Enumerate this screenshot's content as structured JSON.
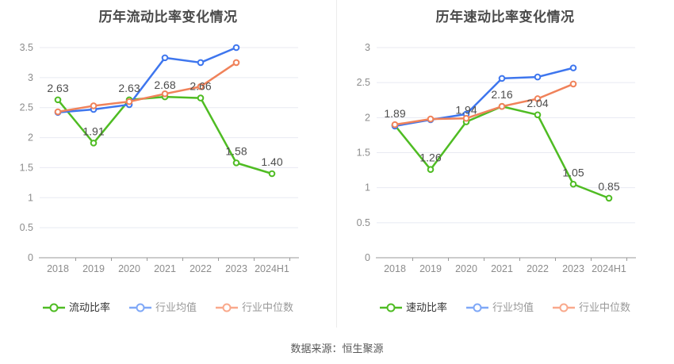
{
  "page": {
    "background": "#ffffff",
    "source_label": "数据来源：恒生聚源"
  },
  "colors": {
    "title_text": "#4a4a4a",
    "axis_line": "#999999",
    "axis_text": "#8c8c8c",
    "grid_line": "#e8eaf2",
    "value_label_text": "#4d4d4d",
    "source_text": "#575757",
    "panel_divider": "#ececec"
  },
  "chart_data": [
    {
      "type": "line",
      "title": "历年流动比率变化情况",
      "categories": [
        "2018",
        "2019",
        "2020",
        "2021",
        "2022",
        "2023",
        "2024H1"
      ],
      "ylim": [
        0,
        3.5
      ],
      "y_tick_step": 0.5,
      "y_tick_labels": [
        "0",
        "0.5",
        "1",
        "1.5",
        "2",
        "2.5",
        "3",
        "3.5"
      ],
      "grid": true,
      "legend_position": "bottom",
      "series": [
        {
          "name": "流动比率",
          "color": "#4fbc23",
          "legend_color": "#4fbc23",
          "legend_text_color": "#333333",
          "show_point_labels": true,
          "values": [
            2.63,
            1.91,
            2.63,
            2.68,
            2.66,
            1.58,
            1.4
          ],
          "point_labels": [
            "2.63",
            "1.91",
            "2.63",
            "2.68",
            "2.66",
            "1.58",
            "1.40"
          ]
        },
        {
          "name": "行业均值",
          "color": "#3e76ee",
          "legend_color": "#7fa8f7",
          "legend_text_color": "#999999",
          "show_point_labels": false,
          "values": [
            2.42,
            2.47,
            2.55,
            3.33,
            3.25,
            3.5
          ]
        },
        {
          "name": "行业中位数",
          "color": "#f0825a",
          "legend_color": "#f9a98c",
          "legend_text_color": "#999999",
          "show_point_labels": false,
          "values": [
            2.43,
            2.53,
            2.6,
            2.73,
            2.85,
            3.25
          ]
        }
      ]
    },
    {
      "type": "line",
      "title": "历年速动比率变化情况",
      "categories": [
        "2018",
        "2019",
        "2020",
        "2021",
        "2022",
        "2023",
        "2024H1"
      ],
      "ylim": [
        0,
        3
      ],
      "y_tick_step": 0.5,
      "y_tick_labels": [
        "0",
        "0.5",
        "1",
        "1.5",
        "2",
        "2.5",
        "3"
      ],
      "grid": true,
      "legend_position": "bottom",
      "series": [
        {
          "name": "速动比率",
          "color": "#4fbc23",
          "legend_color": "#4fbc23",
          "legend_text_color": "#333333",
          "show_point_labels": true,
          "values": [
            1.89,
            1.26,
            1.94,
            2.16,
            2.04,
            1.05,
            0.85
          ],
          "point_labels": [
            "1.89",
            "1.26",
            "1.94",
            "2.16",
            "2.04",
            "1.05",
            "0.85"
          ]
        },
        {
          "name": "行业均值",
          "color": "#3e76ee",
          "legend_color": "#7fa8f7",
          "legend_text_color": "#999999",
          "show_point_labels": false,
          "values": [
            1.88,
            1.97,
            2.05,
            2.56,
            2.58,
            2.71
          ]
        },
        {
          "name": "行业中位数",
          "color": "#f0825a",
          "legend_color": "#f9a98c",
          "legend_text_color": "#999999",
          "show_point_labels": false,
          "values": [
            1.9,
            1.98,
            1.99,
            2.16,
            2.27,
            2.48
          ]
        }
      ]
    }
  ]
}
